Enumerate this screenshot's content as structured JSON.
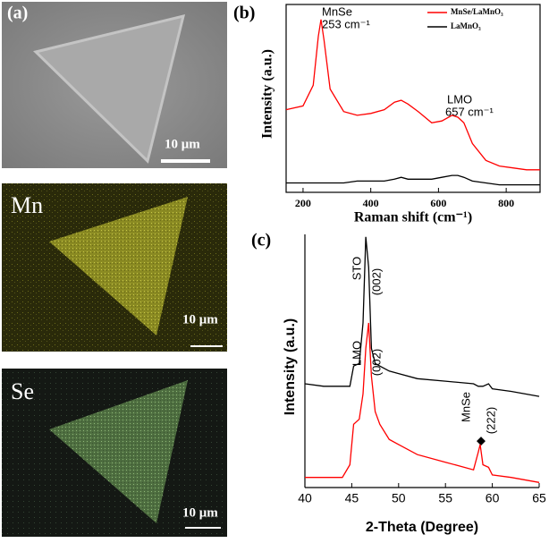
{
  "images": [
    {
      "label": "(a)",
      "scale": "10 μm"
    },
    {
      "label": "Mn",
      "scale": "10 μm"
    },
    {
      "label": "Se",
      "scale": "10 μm"
    }
  ],
  "chart_data": [
    {
      "type": "line",
      "label": "(b)",
      "xlabel": "Raman shift (cm⁻¹)",
      "ylabel": "Intensity (a.u.)",
      "x": [
        150,
        200,
        230,
        245,
        253,
        262,
        280,
        320,
        360,
        400,
        440,
        470,
        490,
        510,
        540,
        580,
        610,
        640,
        657,
        675,
        700,
        740,
        780,
        820,
        860,
        900
      ],
      "series": [
        {
          "name": "MnSe/LaMnO₃",
          "color": "#ff0000",
          "values": [
            4.4,
            4.6,
            5.7,
            8.3,
            9.2,
            8.1,
            5.5,
            4.3,
            4.1,
            4.2,
            4.4,
            4.8,
            4.9,
            4.7,
            4.3,
            3.7,
            3.8,
            4.1,
            4.0,
            3.7,
            2.6,
            1.7,
            1.4,
            1.3,
            1.2,
            1.2
          ]
        },
        {
          "name": "LaMnO₃",
          "color": "#000000",
          "values": [
            0.5,
            0.5,
            0.5,
            0.5,
            0.5,
            0.5,
            0.5,
            0.5,
            0.6,
            0.6,
            0.6,
            0.7,
            0.8,
            0.7,
            0.7,
            0.7,
            0.8,
            0.9,
            0.9,
            0.8,
            0.6,
            0.5,
            0.4,
            0.4,
            0.4,
            0.4
          ]
        }
      ],
      "xlim": [
        150,
        900
      ],
      "xticks": [
        200,
        400,
        600,
        800
      ],
      "ylim": [
        0,
        10
      ],
      "annotations": [
        "MnSe",
        "253 cm⁻¹",
        "LMO",
        "657 cm⁻¹"
      ]
    },
    {
      "type": "line",
      "label": "(c)",
      "xlabel": "2-Theta (Degree)",
      "ylabel": "Intensity (a.u.)",
      "x": [
        40,
        42,
        44,
        44.8,
        45.2,
        45.8,
        46.2,
        46.5,
        46.8,
        47.1,
        47.5,
        48,
        49,
        50,
        52,
        55,
        58,
        58.5,
        58.7,
        59,
        59.6,
        60,
        62,
        65
      ],
      "series": [
        {
          "color": "#000000",
          "values": [
            4.1,
            4.0,
            4.0,
            4.0,
            4.8,
            4.9,
            6.5,
            9.9,
            8.7,
            5.5,
            4.9,
            4.8,
            4.6,
            4.5,
            4.3,
            4.2,
            4.1,
            4.0,
            4.0,
            4.0,
            4.1,
            3.9,
            3.8,
            3.6
          ]
        },
        {
          "color": "#ff0000",
          "values": [
            0.4,
            0.4,
            0.4,
            0.9,
            2.5,
            2.7,
            3.7,
            5.5,
            6.5,
            4.4,
            3.0,
            2.5,
            1.9,
            1.7,
            1.3,
            1.0,
            0.7,
            1.4,
            1.7,
            0.9,
            0.8,
            0.5,
            0.4,
            0.2
          ]
        }
      ],
      "xlim": [
        40,
        65
      ],
      "xticks": [
        40,
        45,
        50,
        55,
        60,
        65
      ],
      "ylim": [
        0,
        10
      ],
      "annotations": [
        "STO",
        "(002)",
        "LMO",
        "(002)",
        "MnSe",
        "(222)",
        "◆"
      ]
    }
  ]
}
